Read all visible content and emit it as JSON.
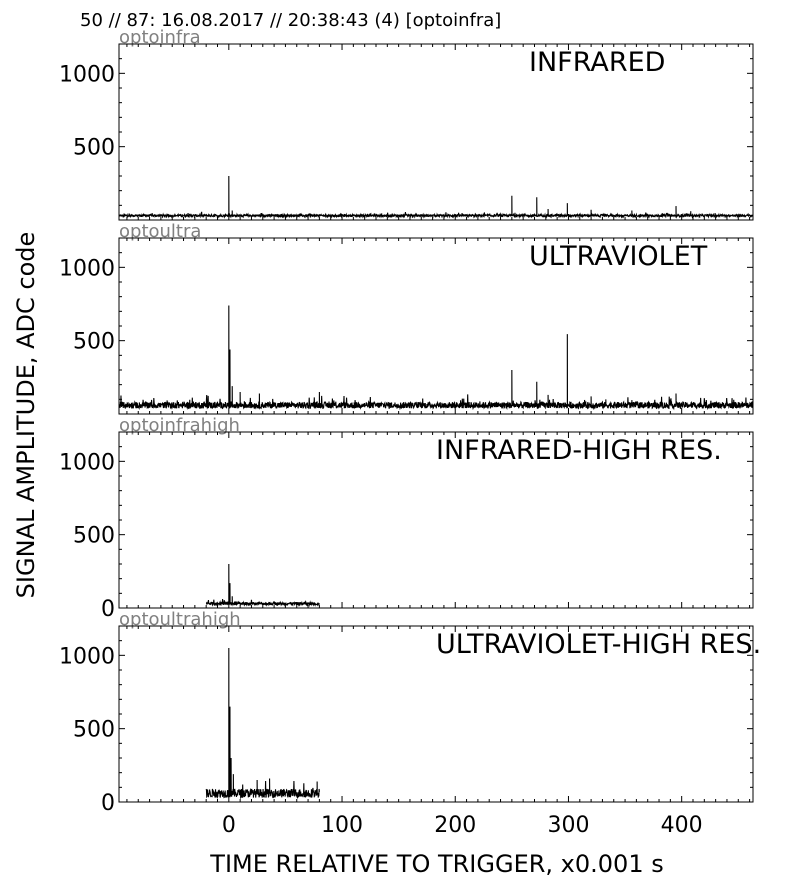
{
  "header": "50 // 87:   16.08.2017 // 20:38:43 (4)  [optoinfra]",
  "chart_data": {
    "type": "line",
    "xlabel": "TIME RELATIVE TO TRIGGER,   x0.001 s",
    "ylabel": "SIGNAL AMPLITUDE,  ADC code",
    "xlim": [
      -97,
      463
    ],
    "ylim": [
      0,
      1200
    ],
    "x_ticks": [
      0,
      100,
      200,
      300,
      400
    ],
    "grid": false,
    "panels": [
      {
        "source": "optoinfra",
        "title": "INFRARED",
        "y_ticks": [
          500,
          1000
        ],
        "x_range": [
          -97,
          463
        ],
        "baseline": 30,
        "noise": 8,
        "peaks": [
          {
            "x": 0,
            "y": 300
          },
          {
            "x": 3,
            "y": 65
          },
          {
            "x": 250,
            "y": 165
          },
          {
            "x": 272,
            "y": 155
          },
          {
            "x": 282,
            "y": 75
          },
          {
            "x": 299,
            "y": 115
          },
          {
            "x": 320,
            "y": 70
          },
          {
            "x": 356,
            "y": 65
          },
          {
            "x": 395,
            "y": 95
          },
          {
            "x": 408,
            "y": 60
          }
        ]
      },
      {
        "source": "optoultra",
        "title": "ULTRAVIOLET",
        "y_ticks": [
          500,
          1000
        ],
        "x_range": [
          -97,
          463
        ],
        "baseline": 60,
        "noise": 22,
        "peaks": [
          {
            "x": 0,
            "y": 740
          },
          {
            "x": 1,
            "y": 440
          },
          {
            "x": 3,
            "y": 190
          },
          {
            "x": 10,
            "y": 150
          },
          {
            "x": 27,
            "y": 140
          },
          {
            "x": 80,
            "y": 150
          },
          {
            "x": 250,
            "y": 300
          },
          {
            "x": 272,
            "y": 220
          },
          {
            "x": 282,
            "y": 130
          },
          {
            "x": 299,
            "y": 545
          },
          {
            "x": 320,
            "y": 120
          },
          {
            "x": 333,
            "y": 100
          },
          {
            "x": 356,
            "y": 95
          },
          {
            "x": 395,
            "y": 140
          }
        ]
      },
      {
        "source": "optoinfrahigh",
        "title": "INFRARED-HIGH RES.",
        "y_ticks": [
          0,
          500,
          1000
        ],
        "x_range": [
          -20,
          80
        ],
        "baseline": 30,
        "noise": 10,
        "peaks": [
          {
            "x": 0,
            "y": 300
          },
          {
            "x": 1,
            "y": 170
          },
          {
            "x": 3,
            "y": 80
          }
        ]
      },
      {
        "source": "optoultrahigh",
        "title": "ULTRAVIOLET-HIGH RES.",
        "y_ticks": [
          0,
          500,
          1000
        ],
        "x_range": [
          -20,
          80
        ],
        "baseline": 60,
        "noise": 30,
        "peaks": [
          {
            "x": 0,
            "y": 1050
          },
          {
            "x": 1,
            "y": 650
          },
          {
            "x": 2,
            "y": 300
          },
          {
            "x": 4,
            "y": 190
          },
          {
            "x": 25,
            "y": 150
          },
          {
            "x": 36,
            "y": 160
          },
          {
            "x": 78,
            "y": 140
          }
        ]
      }
    ]
  }
}
